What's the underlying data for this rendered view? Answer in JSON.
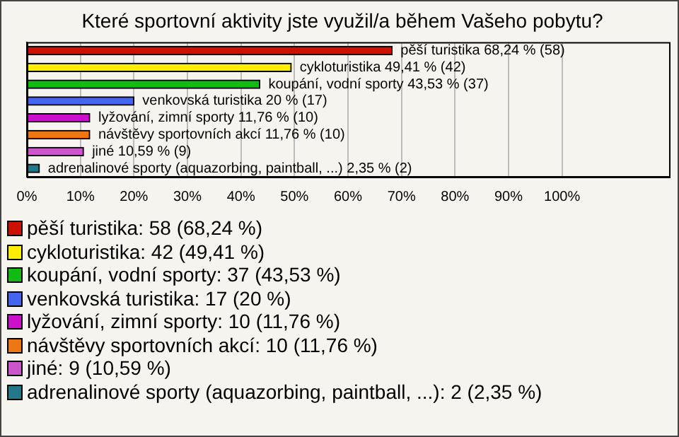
{
  "chart_data": {
    "type": "bar",
    "orientation": "horizontal",
    "stacked": true,
    "title": "Které sportovní aktivity jste využil/a během Vašeho pobytu?",
    "categories": [
      null,
      null,
      null,
      null,
      null,
      null,
      null,
      null
    ],
    "series": [
      {
        "name": "pěší turistika: 58 (68,24 %)",
        "color": "#cc1100",
        "values": [
          68.24,
          null,
          null,
          null,
          null,
          null,
          null,
          null
        ],
        "value_labels": [
          "pěší turistika 68,24 % (58)",
          null,
          null,
          null,
          null,
          null,
          null,
          null
        ]
      },
      {
        "name": "cykloturistika: 42 (49,41 %)",
        "color": "#ffee00",
        "values": [
          null,
          49.41,
          null,
          null,
          null,
          null,
          null,
          null
        ],
        "value_labels": [
          null,
          "cykloturistika 49,41 % (42)",
          null,
          null,
          null,
          null,
          null,
          null
        ]
      },
      {
        "name": "koupání, vodní sporty: 37 (43,53 %)",
        "color": "#11bb11",
        "values": [
          null,
          null,
          43.53,
          null,
          null,
          null,
          null,
          null
        ],
        "value_labels": [
          null,
          null,
          "koupání, vodní sporty 43,53 % (37)",
          null,
          null,
          null,
          null,
          null
        ]
      },
      {
        "name": "venkovská turistika: 17 (20 %)",
        "color": "#4466ee",
        "values": [
          null,
          null,
          null,
          20,
          null,
          null,
          null,
          null
        ],
        "value_labels": [
          null,
          null,
          null,
          "venkovská turistika 20 % (17)",
          null,
          null,
          null,
          null
        ]
      },
      {
        "name": "lyžování, zimní sporty: 10 (11,76 %)",
        "color": "#cc11cc",
        "values": [
          null,
          null,
          null,
          null,
          11.76,
          null,
          null,
          null
        ],
        "value_labels": [
          null,
          null,
          null,
          null,
          "lyžování, zimní sporty 11,76 % (10)",
          null,
          null,
          null
        ]
      },
      {
        "name": "návštěvy sportovních akcí: 10 (11,76 %)",
        "color": "#ee7711",
        "values": [
          null,
          null,
          null,
          null,
          null,
          11.76,
          null,
          null
        ],
        "value_labels": [
          null,
          null,
          null,
          null,
          null,
          "návštěvy sportovních akcí 11,76 % (10)",
          null,
          null
        ]
      },
      {
        "name": "jiné: 9 (10,59 %)",
        "color": "#cc55cc",
        "values": [
          null,
          null,
          null,
          null,
          null,
          null,
          10.59,
          null
        ],
        "value_labels": [
          null,
          null,
          null,
          null,
          null,
          null,
          "jiné 10,59 % (9)",
          null
        ]
      },
      {
        "name": "adrenalinové sporty (aquazorbing, paintball, ...): 2 (2,35 %)",
        "color": "#227788",
        "values": [
          null,
          null,
          null,
          null,
          null,
          null,
          null,
          2.35
        ],
        "value_labels": [
          null,
          null,
          null,
          null,
          null,
          null,
          null,
          "adrenalinové sporty (aquazorbing, paintball, ...) 2,35 % (2)"
        ]
      }
    ],
    "xlim": [
      0,
      120
    ],
    "xticks": [
      {
        "value": 0,
        "label": "0%"
      },
      {
        "value": 10,
        "label": "10%"
      },
      {
        "value": 20,
        "label": "20%"
      },
      {
        "value": 30,
        "label": "30%"
      },
      {
        "value": 40,
        "label": "40%"
      },
      {
        "value": 50,
        "label": "50%"
      },
      {
        "value": 60,
        "label": "60%"
      },
      {
        "value": 70,
        "label": "70%"
      },
      {
        "value": 80,
        "label": "80%"
      },
      {
        "value": 90,
        "label": "90%"
      },
      {
        "value": 100,
        "label": "100%"
      }
    ],
    "grid": "x",
    "legend": "bottom"
  }
}
